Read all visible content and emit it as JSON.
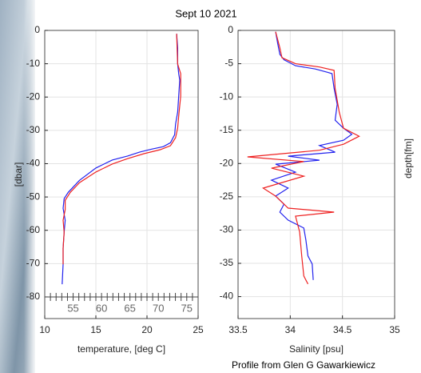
{
  "title": "Sept 10  2021",
  "footer": "Profile from Glen G Gawarkiewicz",
  "chart_data": [
    {
      "type": "line",
      "xlabel": "temperature, [deg C]",
      "ylabel": "[dbar]",
      "xlim": [
        10,
        25
      ],
      "xticks": [
        10,
        15,
        20,
        25
      ],
      "ylim": [
        -86.5,
        0
      ],
      "yticks": [
        0,
        -10,
        -20,
        -30,
        -40,
        -50,
        -60,
        -70,
        -80
      ],
      "x2lim": [
        50,
        77
      ],
      "x2ticks": [
        55,
        60,
        65,
        70,
        75
      ],
      "x2minorticks": [
        51,
        52,
        53,
        54,
        56,
        57,
        58,
        59,
        61,
        62,
        63,
        64,
        66,
        67,
        68,
        69,
        71,
        72,
        73,
        74,
        76
      ],
      "grid": true,
      "series": [
        {
          "color": "#2222ee",
          "x": [
            22.9,
            23.0,
            23.0,
            23.1,
            23.2,
            23.1,
            23.0,
            22.8,
            22.7,
            22.3,
            21.6,
            20.5,
            19.3,
            18.1,
            16.6,
            15.0,
            13.4,
            12.3,
            11.9,
            11.8,
            12.0,
            11.9,
            11.8,
            11.8,
            11.7
          ],
          "y": [
            -1.0,
            -5.3,
            -10.1,
            -13.0,
            -14.9,
            -19.7,
            -24.5,
            -28.1,
            -31.3,
            -33.7,
            -34.9,
            -35.6,
            -36.5,
            -37.7,
            -38.9,
            -41.3,
            -45.0,
            -48.6,
            -50.5,
            -53.4,
            -57.0,
            -60.6,
            -65.4,
            -70.2,
            -76.2
          ]
        },
        {
          "color": "#ee2222",
          "x": [
            22.9,
            23.0,
            23.3,
            23.3,
            23.1,
            23.0,
            22.8,
            22.3,
            21.3,
            19.7,
            18.1,
            16.6,
            15.0,
            13.4,
            12.5,
            12.0,
            12.0,
            11.8,
            11.9,
            11.8,
            11.8
          ],
          "y": [
            -1.0,
            -10.1,
            -13.0,
            -19.7,
            -25.7,
            -29.3,
            -32.2,
            -34.6,
            -35.8,
            -37.0,
            -38.5,
            -40.1,
            -42.5,
            -45.7,
            -48.6,
            -51.0,
            -53.8,
            -57.0,
            -60.6,
            -65.4,
            -70.2
          ]
        }
      ]
    },
    {
      "type": "line",
      "xlabel": "Salinity [psu]",
      "y2label": "depth[fm]",
      "xlim": [
        33.5,
        35
      ],
      "xticks": [
        33.5,
        34,
        34.5,
        35
      ],
      "ylim": [
        -43.3,
        0
      ],
      "yticks": [
        0,
        -5,
        -10,
        -15,
        -20,
        -25,
        -30,
        -35,
        -40
      ],
      "grid": true,
      "series": [
        {
          "color": "#2222ee",
          "x": [
            33.86,
            33.88,
            33.9,
            33.94,
            34.05,
            34.24,
            34.36,
            34.4,
            34.42,
            34.45,
            34.43,
            34.51,
            34.59,
            34.51,
            34.28,
            34.43,
            33.98,
            34.28,
            33.86,
            34.05,
            33.82,
            33.98,
            33.86,
            33.94,
            33.9,
            33.98,
            34.13,
            34.15,
            34.17,
            34.21,
            34.22
          ],
          "y": [
            -0.2,
            -2.0,
            -3.6,
            -4.4,
            -5.3,
            -5.8,
            -6.3,
            -6.5,
            -8.7,
            -11.1,
            -13.5,
            -14.7,
            -15.6,
            -16.5,
            -17.3,
            -18.3,
            -18.9,
            -19.5,
            -20.1,
            -21.3,
            -22.5,
            -23.7,
            -24.9,
            -26.1,
            -27.3,
            -28.5,
            -29.7,
            -31.5,
            -33.9,
            -35.1,
            -37.5
          ]
        },
        {
          "color": "#ee2222",
          "x": [
            33.86,
            33.9,
            33.92,
            34.05,
            34.28,
            34.42,
            34.43,
            34.47,
            34.51,
            34.66,
            34.51,
            34.28,
            33.59,
            34.13,
            33.82,
            34.13,
            33.74,
            33.86,
            33.98,
            34.42,
            34.05,
            34.09,
            34.11,
            34.13,
            34.17
          ],
          "y": [
            -0.2,
            -2.6,
            -4.1,
            -5.0,
            -5.5,
            -6.0,
            -8.7,
            -12.3,
            -14.7,
            -15.9,
            -17.1,
            -18.0,
            -19.0,
            -19.7,
            -20.7,
            -21.9,
            -23.7,
            -24.9,
            -26.7,
            -27.3,
            -27.9,
            -30.3,
            -33.9,
            -36.9,
            -38.1
          ]
        }
      ]
    }
  ]
}
